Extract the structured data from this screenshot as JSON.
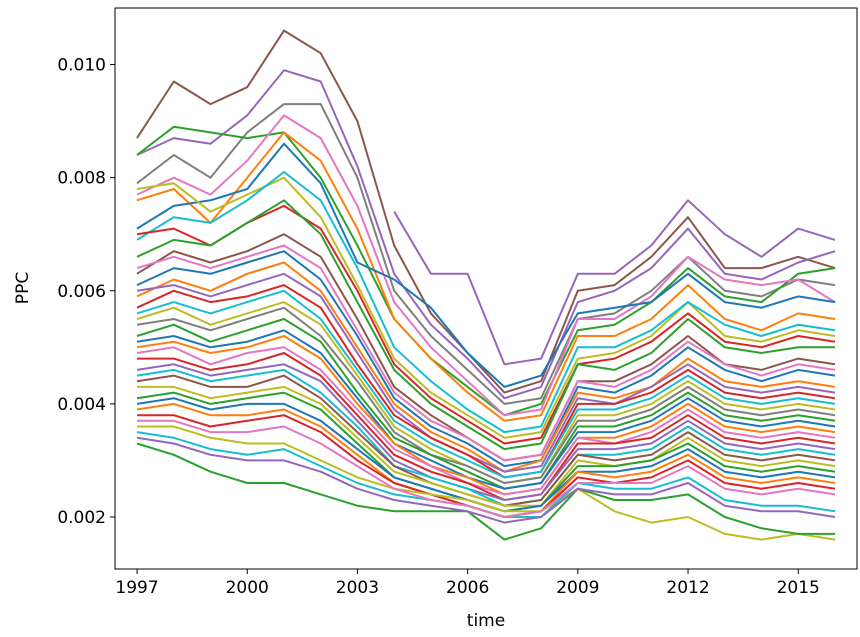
{
  "chart_data": {
    "type": "line",
    "title": "",
    "xlabel": "time",
    "ylabel": "PPC",
    "xlim": [
      1996.4,
      2016.6
    ],
    "ylim": [
      0.00108,
      0.011
    ],
    "x_ticks": [
      1997,
      2000,
      2003,
      2006,
      2009,
      2012,
      2015
    ],
    "x_tick_labels": [
      "1997",
      "2000",
      "2003",
      "2006",
      "2009",
      "2012",
      "2015"
    ],
    "y_ticks": [
      0.002,
      0.004,
      0.006,
      0.008,
      0.01
    ],
    "y_tick_labels": [
      "0.002",
      "0.004",
      "0.006",
      "0.008",
      "0.010"
    ],
    "grid": false,
    "legend": "none",
    "x": [
      1997,
      1998,
      1999,
      2000,
      2001,
      2002,
      2003,
      2004,
      2005,
      2006,
      2007,
      2008,
      2009,
      2010,
      2011,
      2012,
      2013,
      2014,
      2015,
      2016
    ],
    "color_cycle": [
      "#1f77b4",
      "#ff7f0e",
      "#2ca02c",
      "#d62728",
      "#9467bd",
      "#8c564b",
      "#e377c2",
      "#7f7f7f",
      "#bcbd22",
      "#17becf"
    ],
    "series": [
      {
        "color": "#8c564b",
        "values": [
          0.0087,
          0.0097,
          0.0093,
          0.0096,
          0.0106,
          0.0102,
          0.009,
          0.0068,
          0.0056,
          0.0049,
          0.0042,
          0.0044,
          0.006,
          0.0061,
          0.0066,
          0.0073,
          0.0064,
          0.0064,
          0.0066,
          0.0064
        ]
      },
      {
        "color": "#9467bd",
        "values": [
          0.0084,
          0.0087,
          0.0086,
          0.0091,
          0.0099,
          0.0097,
          0.0082,
          0.0063,
          0.0054,
          0.0048,
          0.0041,
          0.0043,
          0.0058,
          0.006,
          0.0064,
          0.0071,
          0.0063,
          0.0062,
          0.0065,
          0.0067
        ]
      },
      {
        "color": "#9467bd",
        "values": [
          null,
          null,
          null,
          null,
          null,
          null,
          null,
          0.0074,
          0.0063,
          0.0063,
          0.0047,
          0.0048,
          0.0063,
          0.0063,
          0.0068,
          0.0076,
          0.007,
          0.0066,
          0.0071,
          0.0069
        ]
      },
      {
        "color": "#7f7f7f",
        "values": [
          0.0079,
          0.0084,
          0.008,
          0.0088,
          0.0093,
          0.0093,
          0.008,
          0.006,
          0.0052,
          0.0046,
          0.004,
          0.0041,
          0.0055,
          0.0056,
          0.006,
          0.0066,
          0.006,
          0.0059,
          0.0062,
          0.0061
        ]
      },
      {
        "color": "#2ca02c",
        "values": [
          0.0084,
          0.0089,
          0.0088,
          0.0087,
          0.0088,
          0.008,
          0.0068,
          0.0055,
          0.0048,
          0.0043,
          0.0038,
          0.004,
          0.0053,
          0.0054,
          0.0058,
          0.0064,
          0.0059,
          0.0058,
          0.0063,
          0.0064
        ]
      },
      {
        "color": "#e377c2",
        "values": [
          0.0077,
          0.008,
          0.0077,
          0.0083,
          0.0091,
          0.0087,
          0.0075,
          0.0058,
          0.005,
          0.0044,
          0.0038,
          0.0039,
          0.0055,
          0.0055,
          0.0059,
          0.0066,
          0.0062,
          0.0061,
          0.0062,
          0.0058
        ]
      },
      {
        "color": "#ff7f0e",
        "values": [
          0.0076,
          0.0078,
          0.0072,
          0.008,
          0.0088,
          0.0083,
          0.0071,
          0.0055,
          0.0048,
          0.0042,
          0.0037,
          0.0038,
          0.0052,
          0.0052,
          0.0055,
          0.0061,
          0.0055,
          0.0053,
          0.0056,
          0.0055
        ]
      },
      {
        "color": "#1f77b4",
        "values": [
          0.0071,
          0.0075,
          0.0076,
          0.0078,
          0.0086,
          0.0079,
          0.0065,
          0.0062,
          0.0057,
          0.0049,
          0.0043,
          0.0045,
          0.0056,
          0.0057,
          0.0058,
          0.0063,
          0.0058,
          0.0057,
          0.0059,
          0.0058
        ]
      },
      {
        "color": "#bcbd22",
        "values": [
          0.0078,
          0.0079,
          0.0074,
          0.0077,
          0.008,
          0.0073,
          0.0061,
          0.0048,
          0.0042,
          0.0038,
          0.0034,
          0.0035,
          0.0048,
          0.0049,
          0.0052,
          0.0058,
          0.0052,
          0.0051,
          0.0053,
          0.0052
        ]
      },
      {
        "color": "#17becf",
        "values": [
          0.0069,
          0.0073,
          0.0072,
          0.0076,
          0.0081,
          0.0076,
          0.0064,
          0.005,
          0.0044,
          0.0039,
          0.0035,
          0.0036,
          0.005,
          0.005,
          0.0053,
          0.0058,
          0.0054,
          0.0052,
          0.0054,
          0.0053
        ]
      },
      {
        "color": "#d62728",
        "values": [
          0.007,
          0.0071,
          0.0068,
          0.0072,
          0.0075,
          0.0071,
          0.006,
          0.0047,
          0.0041,
          0.0037,
          0.0033,
          0.0034,
          0.0047,
          0.0048,
          0.0051,
          0.0056,
          0.0051,
          0.005,
          0.0052,
          0.0051
        ]
      },
      {
        "color": "#2ca02c",
        "values": [
          0.0066,
          0.0069,
          0.0068,
          0.0072,
          0.0076,
          0.007,
          0.0058,
          0.0046,
          0.004,
          0.0036,
          0.0032,
          0.0033,
          0.0047,
          0.0046,
          0.0049,
          0.0055,
          0.005,
          0.0049,
          0.005,
          0.005
        ]
      },
      {
        "color": "#8c564b",
        "values": [
          0.0063,
          0.0067,
          0.0065,
          0.0067,
          0.007,
          0.0066,
          0.0055,
          0.0043,
          0.0038,
          0.0034,
          0.003,
          0.0031,
          0.0044,
          0.0044,
          0.0047,
          0.0052,
          0.0047,
          0.0046,
          0.0048,
          0.0047
        ]
      },
      {
        "color": "#e377c2",
        "values": [
          0.0064,
          0.0066,
          0.0064,
          0.0066,
          0.0068,
          0.0064,
          0.0053,
          0.0042,
          0.0037,
          0.0034,
          0.003,
          0.0031,
          0.0044,
          0.0043,
          0.0046,
          0.0051,
          0.0047,
          0.0045,
          0.0047,
          0.0046
        ]
      },
      {
        "color": "#1f77b4",
        "values": [
          0.0061,
          0.0064,
          0.0063,
          0.0065,
          0.0067,
          0.0062,
          0.0052,
          0.0041,
          0.0036,
          0.0033,
          0.0029,
          0.003,
          0.0043,
          0.0042,
          0.0045,
          0.005,
          0.0046,
          0.0044,
          0.0046,
          0.0045
        ]
      },
      {
        "color": "#ff7f0e",
        "values": [
          0.0059,
          0.0062,
          0.006,
          0.0063,
          0.0065,
          0.006,
          0.005,
          0.004,
          0.0035,
          0.0032,
          0.0028,
          0.003,
          0.0042,
          0.0041,
          0.0043,
          0.0048,
          0.0044,
          0.0043,
          0.0044,
          0.0043
        ]
      },
      {
        "color": "#9467bd",
        "values": [
          0.006,
          0.0061,
          0.0059,
          0.0061,
          0.0063,
          0.0059,
          0.0049,
          0.0039,
          0.0034,
          0.0031,
          0.0028,
          0.0029,
          0.0041,
          0.004,
          0.0043,
          0.0047,
          0.0043,
          0.0042,
          0.0043,
          0.0042
        ]
      },
      {
        "color": "#d62728",
        "values": [
          0.0057,
          0.006,
          0.0058,
          0.0059,
          0.0061,
          0.0057,
          0.0047,
          0.0038,
          0.0034,
          0.0031,
          0.0027,
          0.0028,
          0.004,
          0.004,
          0.0042,
          0.0046,
          0.0042,
          0.0041,
          0.0042,
          0.0041
        ]
      },
      {
        "color": "#17becf",
        "values": [
          0.0056,
          0.0058,
          0.0056,
          0.0058,
          0.006,
          0.0055,
          0.0046,
          0.0037,
          0.0033,
          0.003,
          0.0027,
          0.0028,
          0.0039,
          0.0039,
          0.0041,
          0.0045,
          0.0041,
          0.004,
          0.0041,
          0.004
        ]
      },
      {
        "color": "#bcbd22",
        "values": [
          0.0055,
          0.0057,
          0.0054,
          0.0056,
          0.0058,
          0.0054,
          0.0045,
          0.0036,
          0.0032,
          0.0029,
          0.0026,
          0.0027,
          0.0038,
          0.0038,
          0.004,
          0.0044,
          0.004,
          0.0039,
          0.004,
          0.0039
        ]
      },
      {
        "color": "#7f7f7f",
        "values": [
          0.0054,
          0.0055,
          0.0053,
          0.0055,
          0.0057,
          0.0052,
          0.0044,
          0.0035,
          0.0031,
          0.0029,
          0.0026,
          0.0027,
          0.0037,
          0.0037,
          0.0039,
          0.0043,
          0.0039,
          0.0038,
          0.0039,
          0.0038
        ]
      },
      {
        "color": "#2ca02c",
        "values": [
          0.0052,
          0.0054,
          0.0051,
          0.0053,
          0.0055,
          0.0051,
          0.0042,
          0.0034,
          0.0031,
          0.0028,
          0.0025,
          0.0026,
          0.0036,
          0.0036,
          0.0038,
          0.0042,
          0.0038,
          0.0037,
          0.0038,
          0.0037
        ]
      },
      {
        "color": "#1f77b4",
        "values": [
          0.0051,
          0.0052,
          0.005,
          0.0051,
          0.0053,
          0.0049,
          0.0041,
          0.0033,
          0.003,
          0.0027,
          0.0025,
          0.0026,
          0.0035,
          0.0035,
          0.0037,
          0.0041,
          0.0037,
          0.0036,
          0.0037,
          0.0036
        ]
      },
      {
        "color": "#ff7f0e",
        "values": [
          0.005,
          0.0051,
          0.0049,
          0.005,
          0.0052,
          0.0048,
          0.004,
          0.0033,
          0.0029,
          0.0027,
          0.0024,
          0.0025,
          0.0034,
          0.0034,
          0.0036,
          0.004,
          0.0036,
          0.0035,
          0.0036,
          0.0035
        ]
      },
      {
        "color": "#e377c2",
        "values": [
          0.0049,
          0.005,
          0.0047,
          0.0049,
          0.005,
          0.0046,
          0.0039,
          0.0032,
          0.0029,
          0.0026,
          0.0024,
          0.0025,
          0.0034,
          0.0033,
          0.0035,
          0.0039,
          0.0035,
          0.0034,
          0.0035,
          0.0034
        ]
      },
      {
        "color": "#d62728",
        "values": [
          0.0048,
          0.0048,
          0.0046,
          0.0047,
          0.0049,
          0.0045,
          0.0038,
          0.0031,
          0.0028,
          0.0026,
          0.0023,
          0.0024,
          0.0033,
          0.0033,
          0.0034,
          0.0038,
          0.0034,
          0.0033,
          0.0034,
          0.0033
        ]
      },
      {
        "color": "#9467bd",
        "values": [
          0.0046,
          0.0047,
          0.0045,
          0.0046,
          0.0047,
          0.0044,
          0.0037,
          0.003,
          0.0027,
          0.0025,
          0.0023,
          0.0024,
          0.0032,
          0.0032,
          0.0033,
          0.0037,
          0.0033,
          0.0032,
          0.0033,
          0.0032
        ]
      },
      {
        "color": "#17becf",
        "values": [
          0.0045,
          0.0046,
          0.0044,
          0.0045,
          0.0046,
          0.0042,
          0.0036,
          0.0029,
          0.0027,
          0.0025,
          0.0022,
          0.0023,
          0.0031,
          0.0031,
          0.0032,
          0.0036,
          0.0032,
          0.0031,
          0.0032,
          0.0031
        ]
      },
      {
        "color": "#8c564b",
        "values": [
          0.0044,
          0.0045,
          0.0043,
          0.0043,
          0.0045,
          0.0041,
          0.0035,
          0.0029,
          0.0026,
          0.0024,
          0.0022,
          0.0023,
          0.0031,
          0.003,
          0.0031,
          0.0035,
          0.0031,
          0.003,
          0.0031,
          0.003
        ]
      },
      {
        "color": "#bcbd22",
        "values": [
          0.0043,
          0.0043,
          0.0041,
          0.0042,
          0.0043,
          0.004,
          0.0034,
          0.0028,
          0.0026,
          0.0024,
          0.0022,
          0.0022,
          0.003,
          0.0029,
          0.003,
          0.0034,
          0.003,
          0.0029,
          0.003,
          0.0029
        ]
      },
      {
        "color": "#2ca02c",
        "values": [
          0.0041,
          0.0042,
          0.004,
          0.0041,
          0.0042,
          0.0039,
          0.0033,
          0.0027,
          0.0025,
          0.0023,
          0.0021,
          0.0022,
          0.0029,
          0.0029,
          0.003,
          0.0033,
          0.0029,
          0.0028,
          0.0029,
          0.0028
        ]
      },
      {
        "color": "#1f77b4",
        "values": [
          0.004,
          0.0041,
          0.0039,
          0.004,
          0.004,
          0.0037,
          0.0032,
          0.0027,
          0.0025,
          0.0023,
          0.0021,
          0.0022,
          0.0028,
          0.0028,
          0.0029,
          0.0032,
          0.0028,
          0.0027,
          0.0028,
          0.0027
        ]
      },
      {
        "color": "#ff7f0e",
        "values": [
          0.0039,
          0.004,
          0.0038,
          0.0038,
          0.0039,
          0.0036,
          0.0031,
          0.0026,
          0.0024,
          0.0022,
          0.002,
          0.0021,
          0.0028,
          0.0027,
          0.0028,
          0.0031,
          0.0027,
          0.0026,
          0.0027,
          0.0026
        ]
      },
      {
        "color": "#d62728",
        "values": [
          0.0038,
          0.0038,
          0.0036,
          0.0037,
          0.0038,
          0.0035,
          0.003,
          0.0026,
          0.0024,
          0.0022,
          0.002,
          0.0021,
          0.0027,
          0.0026,
          0.0027,
          0.003,
          0.0026,
          0.0025,
          0.0026,
          0.0025
        ]
      },
      {
        "color": "#bcbd22",
        "values": [
          0.0036,
          0.0036,
          0.0034,
          0.0033,
          0.0033,
          0.003,
          0.0027,
          0.0025,
          0.0024,
          0.0023,
          0.0021,
          0.0021,
          0.0025,
          0.0021,
          0.0019,
          0.002,
          0.0017,
          0.0016,
          0.0017,
          0.0016
        ]
      },
      {
        "color": "#2ca02c",
        "values": [
          0.0033,
          0.0031,
          0.0028,
          0.0026,
          0.0026,
          0.0024,
          0.0022,
          0.0021,
          0.0021,
          0.0021,
          0.0016,
          0.0018,
          0.0025,
          0.0023,
          0.0023,
          0.0024,
          0.002,
          0.0018,
          0.0017,
          0.0017
        ]
      },
      {
        "color": "#17becf",
        "values": [
          0.0035,
          0.0034,
          0.0032,
          0.0031,
          0.0032,
          0.0029,
          0.0026,
          0.0024,
          0.0023,
          0.0022,
          0.002,
          0.002,
          0.0026,
          0.0025,
          0.0025,
          0.0027,
          0.0023,
          0.0022,
          0.0022,
          0.0021
        ]
      },
      {
        "color": "#e377c2",
        "values": [
          0.0037,
          0.0037,
          0.0035,
          0.0035,
          0.0036,
          0.0033,
          0.0029,
          0.0025,
          0.0023,
          0.0022,
          0.002,
          0.0021,
          0.0026,
          0.0026,
          0.0026,
          0.0029,
          0.0025,
          0.0024,
          0.0025,
          0.0024
        ]
      },
      {
        "color": "#9467bd",
        "values": [
          0.0034,
          0.0033,
          0.0031,
          0.003,
          0.003,
          0.0028,
          0.0025,
          0.0023,
          0.0022,
          0.0021,
          0.0019,
          0.002,
          0.0025,
          0.0024,
          0.0024,
          0.0026,
          0.0022,
          0.0021,
          0.0021,
          0.002
        ]
      }
    ]
  }
}
